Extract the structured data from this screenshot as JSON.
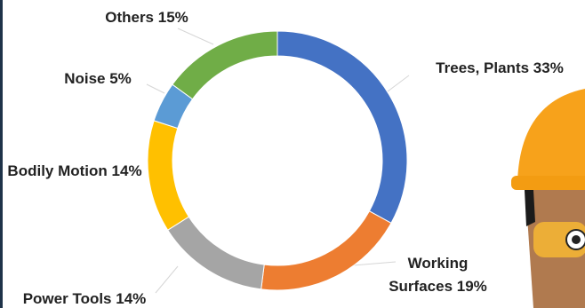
{
  "chart_data": {
    "type": "donut",
    "categories": [
      "Trees, Plants",
      "Working Surfaces",
      "Power Tools",
      "Bodily Motion",
      "Noise",
      "Others"
    ],
    "values": [
      33,
      19,
      14,
      14,
      5,
      15
    ],
    "value_labels": [
      "33%",
      "19%",
      "14%",
      "14%",
      "5%",
      "15%"
    ],
    "colors": [
      "#4472c4",
      "#ed7d31",
      "#a5a5a5",
      "#ffc000",
      "#5b9bd5",
      "#70ad47"
    ]
  }
}
